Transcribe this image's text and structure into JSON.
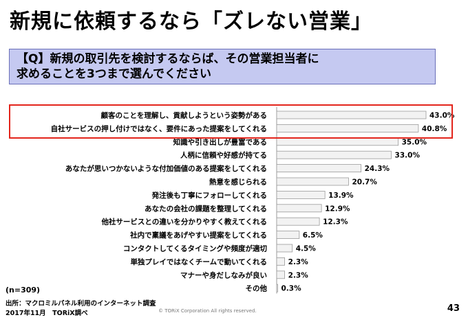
{
  "slide": {
    "title": "新規に依頼するなら「ズレない営業」",
    "question_line1": "【Q】新規の取引先を検討するならば、その営業担当者に",
    "question_line2": "求めることを3つまで選んでください",
    "sample": "(n=309)",
    "source_line1": "出所：マクロミルパネル利用のインターネット調査",
    "source_line2": "2017年11月　TORiX調べ",
    "copyright": "© TORiX Corporation All rights reserved.",
    "page_number": "43"
  },
  "chart_data": {
    "type": "bar",
    "orientation": "horizontal",
    "categories": [
      "顧客のことを理解し、貢献しようという姿勢がある",
      "自社サービスの押し付けではなく、要件にあった提案をしてくれる",
      "知識や引き出しが豊富である",
      "人柄に信頼や好感が持てる",
      "あなたが思いつかないような付加価値のある提案をしてくれる",
      "熱意を感じられる",
      "発注後も丁寧にフォローしてくれる",
      "あなたの会社の課題を整理してくれる",
      "他社サービスとの違いを分かりやすく教えてくれる",
      "社内で稟議をあげやすい提案をしてくれる",
      "コンタクトしてくるタイミングや頻度が適切",
      "単独プレイではなくチームで動いてくれる",
      "マナーや身だしなみが良い",
      "その他"
    ],
    "values": [
      43.0,
      40.8,
      35.0,
      33.0,
      24.3,
      20.7,
      13.9,
      12.9,
      12.3,
      6.5,
      4.5,
      2.3,
      2.3,
      0.3
    ],
    "value_labels": [
      "43.0%",
      "40.8%",
      "35.0%",
      "33.0%",
      "24.3%",
      "20.7%",
      "13.9%",
      "12.9%",
      "12.3%",
      "6.5%",
      "4.5%",
      "2.3%",
      "2.3%",
      "0.3%"
    ],
    "highlighted_rows": [
      0,
      1
    ],
    "colors": {
      "bar_fill": "#f2f2f2",
      "bar_stroke": "#9a9a9a",
      "highlight": "#e3241b",
      "question_bg": "#c5c9f1"
    }
  }
}
